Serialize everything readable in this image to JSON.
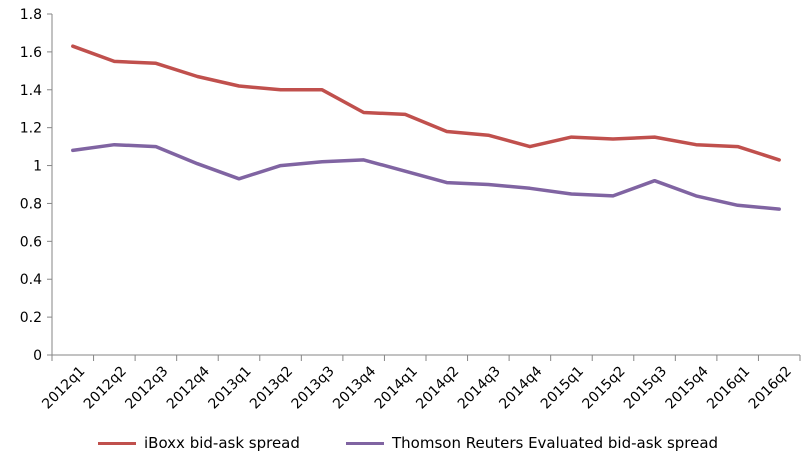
{
  "chart_data": {
    "type": "line",
    "categories": [
      "2012q1",
      "2012q2",
      "2012q3",
      "2012q4",
      "2013q1",
      "2013q2",
      "2013q3",
      "2013q4",
      "2014q1",
      "2014q2",
      "2014q3",
      "2014q4",
      "2015q1",
      "2015q2",
      "2015q3",
      "2015q4",
      "2016q1",
      "2016q2"
    ],
    "series": [
      {
        "name": "iBoxx bid-ask spread",
        "color": "#c0504d",
        "values": [
          1.63,
          1.55,
          1.54,
          1.47,
          1.42,
          1.4,
          1.4,
          1.28,
          1.27,
          1.18,
          1.16,
          1.1,
          1.15,
          1.14,
          1.15,
          1.11,
          1.1,
          1.03
        ]
      },
      {
        "name": "Thomson Reuters Evaluated bid-ask spread",
        "color": "#8064a2",
        "values": [
          1.08,
          1.11,
          1.1,
          1.01,
          0.93,
          1.0,
          1.02,
          1.03,
          0.97,
          0.91,
          0.9,
          0.88,
          0.85,
          0.84,
          0.92,
          0.84,
          0.79,
          0.77
        ]
      }
    ],
    "y_ticks": [
      "0",
      "0.2",
      "0.4",
      "0.6",
      "0.8",
      "1",
      "1.2",
      "1.4",
      "1.6",
      "1.8"
    ],
    "ylim": [
      0,
      1.8
    ],
    "title": "",
    "xlabel": "",
    "ylabel": "",
    "grid": false,
    "legend_position": "bottom"
  }
}
